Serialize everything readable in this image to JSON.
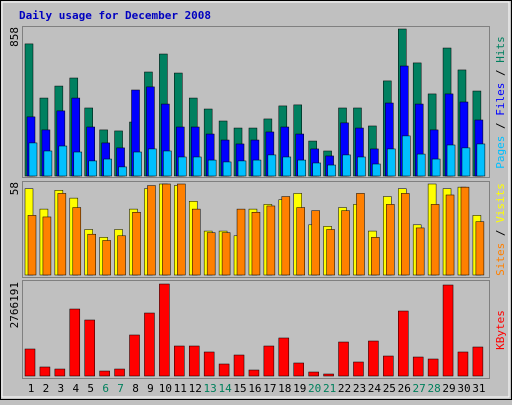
{
  "title": "Daily usage for December 2008",
  "legend_separator": " / ",
  "chart_data": [
    {
      "type": "bar",
      "ylim": [
        0,
        858
      ],
      "yticks": [
        858
      ],
      "series": [
        {
          "name": "Pages",
          "color": "#00c0ff",
          "values": [
            193,
            146,
            175,
            140,
            88,
            99,
            53,
            140,
            158,
            146,
            111,
            111,
            93,
            82,
            88,
            93,
            123,
            111,
            93,
            76,
            64,
            123,
            111,
            70,
            158,
            234,
            128,
            99,
            181,
            164,
            187
          ]
        },
        {
          "name": "Files",
          "color": "#0000ff",
          "values": [
            345,
            269,
            380,
            455,
            286,
            193,
            164,
            502,
            520,
            420,
            286,
            286,
            245,
            210,
            187,
            210,
            257,
            286,
            245,
            158,
            117,
            310,
            280,
            158,
            426,
            642,
            420,
            269,
            479,
            432,
            327
          ]
        },
        {
          "name": "Hits",
          "color": "#008060",
          "values": [
            771,
            455,
            525,
            572,
            397,
            269,
            263,
            315,
            607,
            712,
            601,
            455,
            391,
            321,
            280,
            280,
            333,
            409,
            415,
            204,
            146,
            397,
            397,
            292,
            555,
            858,
            660,
            479,
            747,
            619,
            496
          ]
        }
      ]
    },
    {
      "type": "bar",
      "ylim": [
        0,
        58
      ],
      "yticks": [
        58
      ],
      "series": [
        {
          "name": "Sites",
          "color": "#ff8000",
          "values": [
            38,
            37,
            52,
            43,
            26,
            22,
            25,
            40,
            57,
            58,
            58,
            42,
            27,
            27,
            42,
            40,
            44,
            50,
            43,
            41,
            29,
            41,
            52,
            24,
            45,
            52,
            30,
            45,
            51,
            56,
            34
          ]
        },
        {
          "name": "Visits",
          "color": "#ffff00",
          "values": [
            55,
            42,
            54,
            49,
            29,
            24,
            29,
            42,
            55,
            58,
            57,
            47,
            28,
            28,
            25,
            42,
            45,
            48,
            52,
            32,
            31,
            43,
            45,
            28,
            50,
            55,
            32,
            58,
            55,
            56,
            38
          ]
        }
      ]
    },
    {
      "type": "bar",
      "ylim": [
        0,
        2766191
      ],
      "yticks": [
        2766191
      ],
      "categories": [
        "1",
        "2",
        "3",
        "4",
        "5",
        "6",
        "7",
        "8",
        "9",
        "10",
        "11",
        "12",
        "13",
        "14",
        "15",
        "16",
        "17",
        "18",
        "19",
        "20",
        "21",
        "22",
        "23",
        "24",
        "25",
        "26",
        "27",
        "28",
        "29",
        "30",
        "31"
      ],
      "category_colors": [
        "#000000",
        "#000000",
        "#000000",
        "#000000",
        "#000000",
        "#00805c",
        "#00805c",
        "#000000",
        "#000000",
        "#000000",
        "#000000",
        "#000000",
        "#00805c",
        "#00805c",
        "#000000",
        "#000000",
        "#000000",
        "#000000",
        "#000000",
        "#00805c",
        "#00805c",
        "#000000",
        "#000000",
        "#000000",
        "#000000",
        "#000000",
        "#00805c",
        "#00805c",
        "#000000",
        "#000000",
        "#000000"
      ],
      "series": [
        {
          "name": "KBytes",
          "color": "#ff0000",
          "values": [
            812000,
            271000,
            210000,
            2014000,
            1684000,
            150000,
            210000,
            1233000,
            1894000,
            2766191,
            902000,
            902000,
            722000,
            361000,
            631000,
            180000,
            902000,
            1143000,
            391000,
            120000,
            60000,
            1022000,
            421000,
            1052000,
            601000,
            1954000,
            571000,
            511000,
            2736000,
            722000,
            872000
          ]
        }
      ]
    }
  ]
}
